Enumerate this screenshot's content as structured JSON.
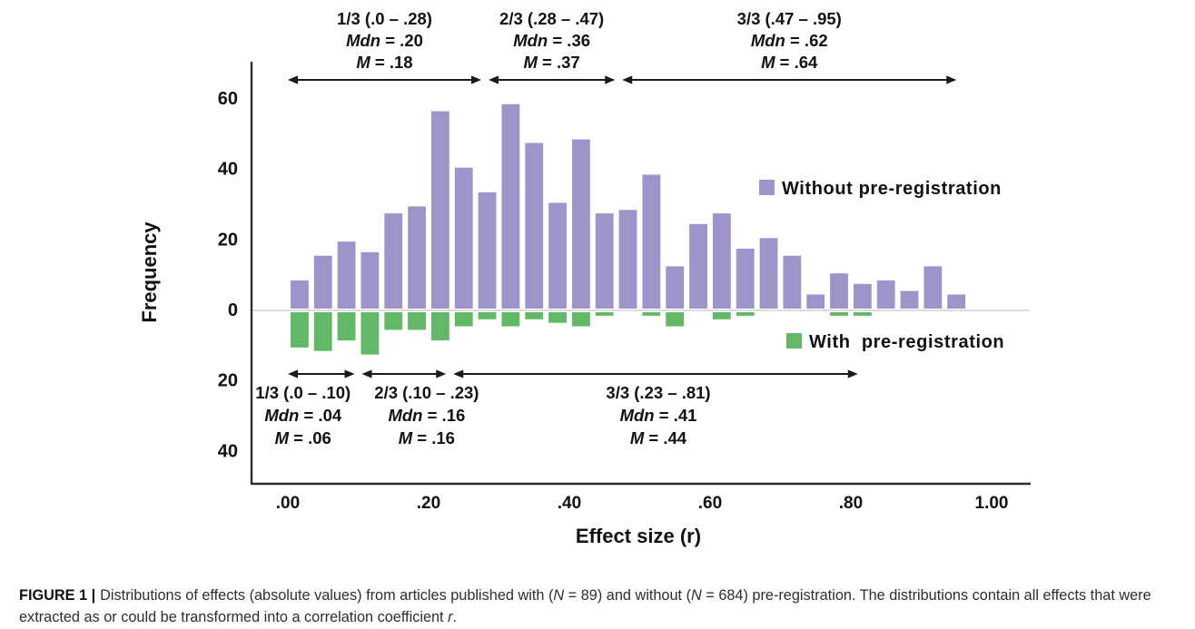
{
  "chart_data": {
    "type": "bar",
    "title": "",
    "xlabel": "Effect size (r)",
    "ylabel": "Frequency",
    "x_ticks": [
      ".00",
      ".20",
      ".40",
      ".60",
      ".80",
      "1.00"
    ],
    "x_tick_values": [
      0,
      0.2,
      0.4,
      0.6,
      0.8,
      1.0
    ],
    "y_ticks": [
      {
        "label": "60",
        "value": 60
      },
      {
        "label": "40",
        "value": 40
      },
      {
        "label": "20",
        "value": 20
      },
      {
        "label": "0",
        "value": 0
      },
      {
        "label": "20",
        "value": -20
      },
      {
        "label": "40",
        "value": -40
      }
    ],
    "ylim": [
      -48,
      62
    ],
    "xlim": [
      0,
      1.0
    ],
    "grid": false,
    "zero_line": true,
    "bin_width": 0.03333,
    "bin_start": 0.0,
    "series": [
      {
        "name": "Without pre-registration",
        "n": 684,
        "color": "#9b95c9",
        "direction": "up",
        "values": [
          8,
          15,
          19,
          16,
          27,
          29,
          56,
          40,
          33,
          58,
          47,
          30,
          48,
          27,
          28,
          38,
          12,
          24,
          27,
          17,
          20,
          15,
          4,
          10,
          7,
          8,
          5,
          12,
          4
        ]
      },
      {
        "name": "With pre-registration",
        "n": 89,
        "color": "#61b867",
        "direction": "down",
        "values": [
          10,
          11,
          8,
          12,
          5,
          5,
          8,
          4,
          2,
          4,
          2,
          3,
          4,
          1,
          0,
          1,
          4,
          0,
          2,
          1,
          0,
          0,
          0,
          1,
          1,
          0,
          0,
          0,
          0
        ]
      }
    ]
  },
  "annotations": {
    "top": [
      {
        "label": "1/3 (.0 – .28)",
        "mdn_label": "Mdn",
        "mdn_value": " = .20",
        "m_label": "M",
        "m_value": " = .18",
        "range": [
          0.0,
          0.28
        ]
      },
      {
        "label": "2/3 (.28 – .47)",
        "mdn_label": "Mdn",
        "mdn_value": " = .36",
        "m_label": "M",
        "m_value": " = .37",
        "range": [
          0.28,
          0.47
        ]
      },
      {
        "label": "3/3 (.47 – .95)",
        "mdn_label": "Mdn",
        "mdn_value": " = .62",
        "m_label": "M",
        "m_value": " = .64",
        "range": [
          0.47,
          0.95
        ]
      }
    ],
    "bottom": [
      {
        "label": "1/3 (.0 – .10)",
        "mdn_label": "Mdn",
        "mdn_value": " = .04",
        "m_label": "M",
        "m_value": " = .06",
        "range": [
          0.0,
          0.1
        ]
      },
      {
        "label": "2/3 (.10 – .23)",
        "mdn_label": "Mdn",
        "mdn_value": " = .16",
        "m_label": "M",
        "m_value": " = .16",
        "range": [
          0.1,
          0.23
        ]
      },
      {
        "label": "3/3 (.23 – .81)",
        "mdn_label": "Mdn",
        "mdn_value": " = .41",
        "m_label": "M",
        "m_value": " = .44",
        "range": [
          0.23,
          0.81
        ]
      }
    ]
  },
  "legend": {
    "without": {
      "label": "Without pre-registration",
      "color": "#9b95c9"
    },
    "with": {
      "label": "With  pre-registration",
      "color": "#61b867"
    }
  },
  "caption": {
    "prefix": "FIGURE 1 |",
    "segments": [
      {
        "t": "Distributions of effects (absolute values) from articles published with ("
      },
      {
        "t": "N",
        "i": true
      },
      {
        "t": " = 89) and without ("
      },
      {
        "t": "N",
        "i": true
      },
      {
        "t": " = 684) pre-registration. The distributions contain all effects that were extracted as or could be transformed into a correlation coefficient "
      },
      {
        "t": "r",
        "i": true
      },
      {
        "t": "."
      }
    ]
  }
}
